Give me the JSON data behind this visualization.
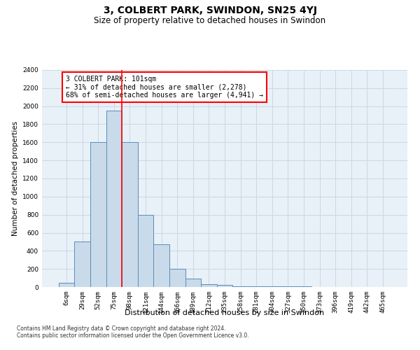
{
  "title": "3, COLBERT PARK, SWINDON, SN25 4YJ",
  "subtitle": "Size of property relative to detached houses in Swindon",
  "xlabel": "Distribution of detached houses by size in Swindon",
  "ylabel": "Number of detached properties",
  "footnote1": "Contains HM Land Registry data © Crown copyright and database right 2024.",
  "footnote2": "Contains public sector information licensed under the Open Government Licence v3.0.",
  "bar_labels": [
    "6sqm",
    "29sqm",
    "52sqm",
    "75sqm",
    "98sqm",
    "121sqm",
    "144sqm",
    "166sqm",
    "189sqm",
    "212sqm",
    "235sqm",
    "258sqm",
    "281sqm",
    "304sqm",
    "327sqm",
    "350sqm",
    "373sqm",
    "396sqm",
    "419sqm",
    "442sqm",
    "465sqm"
  ],
  "bar_values": [
    50,
    500,
    1600,
    1950,
    1600,
    800,
    470,
    200,
    90,
    30,
    20,
    10,
    5,
    5,
    5,
    5,
    2,
    2,
    2,
    2,
    2
  ],
  "bar_color": "#c9daea",
  "bar_edge_color": "#5b8db8",
  "red_line_index": 4,
  "annotation_text": "3 COLBERT PARK: 101sqm\n← 31% of detached houses are smaller (2,278)\n68% of semi-detached houses are larger (4,941) →",
  "annotation_box_color": "white",
  "annotation_box_edge_color": "red",
  "ylim_max": 2400,
  "yticks": [
    0,
    200,
    400,
    600,
    800,
    1000,
    1200,
    1400,
    1600,
    1800,
    2000,
    2200,
    2400
  ],
  "grid_color": "#cdd8e3",
  "bg_color": "#e8f0f8",
  "title_fontsize": 10,
  "subtitle_fontsize": 8.5,
  "xlabel_fontsize": 8,
  "ylabel_fontsize": 7.5,
  "tick_fontsize": 6.5,
  "annotation_fontsize": 7,
  "footnote_fontsize": 5.5
}
